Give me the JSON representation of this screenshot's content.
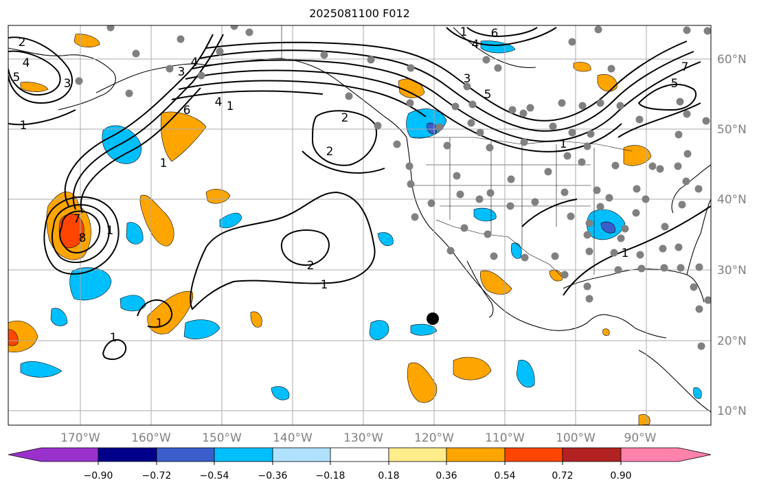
{
  "title": "2025081100 F012",
  "map": {
    "lon_labels": [
      "170°W",
      "160°W",
      "150°W",
      "140°W",
      "130°W",
      "120°W",
      "110°W",
      "100°W",
      "90°W"
    ],
    "lat_labels": [
      "60°N",
      "50°N",
      "40°N",
      "30°N",
      "20°N",
      "10°N"
    ],
    "contour_labels": [
      "2",
      "4",
      "5",
      "3",
      "1",
      "3",
      "4",
      "1",
      "6",
      "4",
      "1",
      "7",
      "8",
      "1",
      "2",
      "3",
      "5",
      "6",
      "1",
      "4",
      "5",
      "7",
      "2",
      "1",
      "2",
      "1",
      "1",
      "1",
      "1"
    ]
  },
  "colorbar": {
    "tick_labels": [
      "−0.90",
      "−0.72",
      "−0.54",
      "−0.36",
      "−0.18",
      "0.18",
      "0.36",
      "0.54",
      "0.72",
      "0.90"
    ],
    "colors": [
      "#9932cc",
      "#00008b",
      "#3a5fcd",
      "#00bfff",
      "#b0e2ff",
      "#ffffff",
      "#ffec8b",
      "#ffa500",
      "#ff4500",
      "#b22222",
      "#ff82ab"
    ]
  },
  "marker_color": "#808080",
  "highlight_marker_color": "#000000"
}
